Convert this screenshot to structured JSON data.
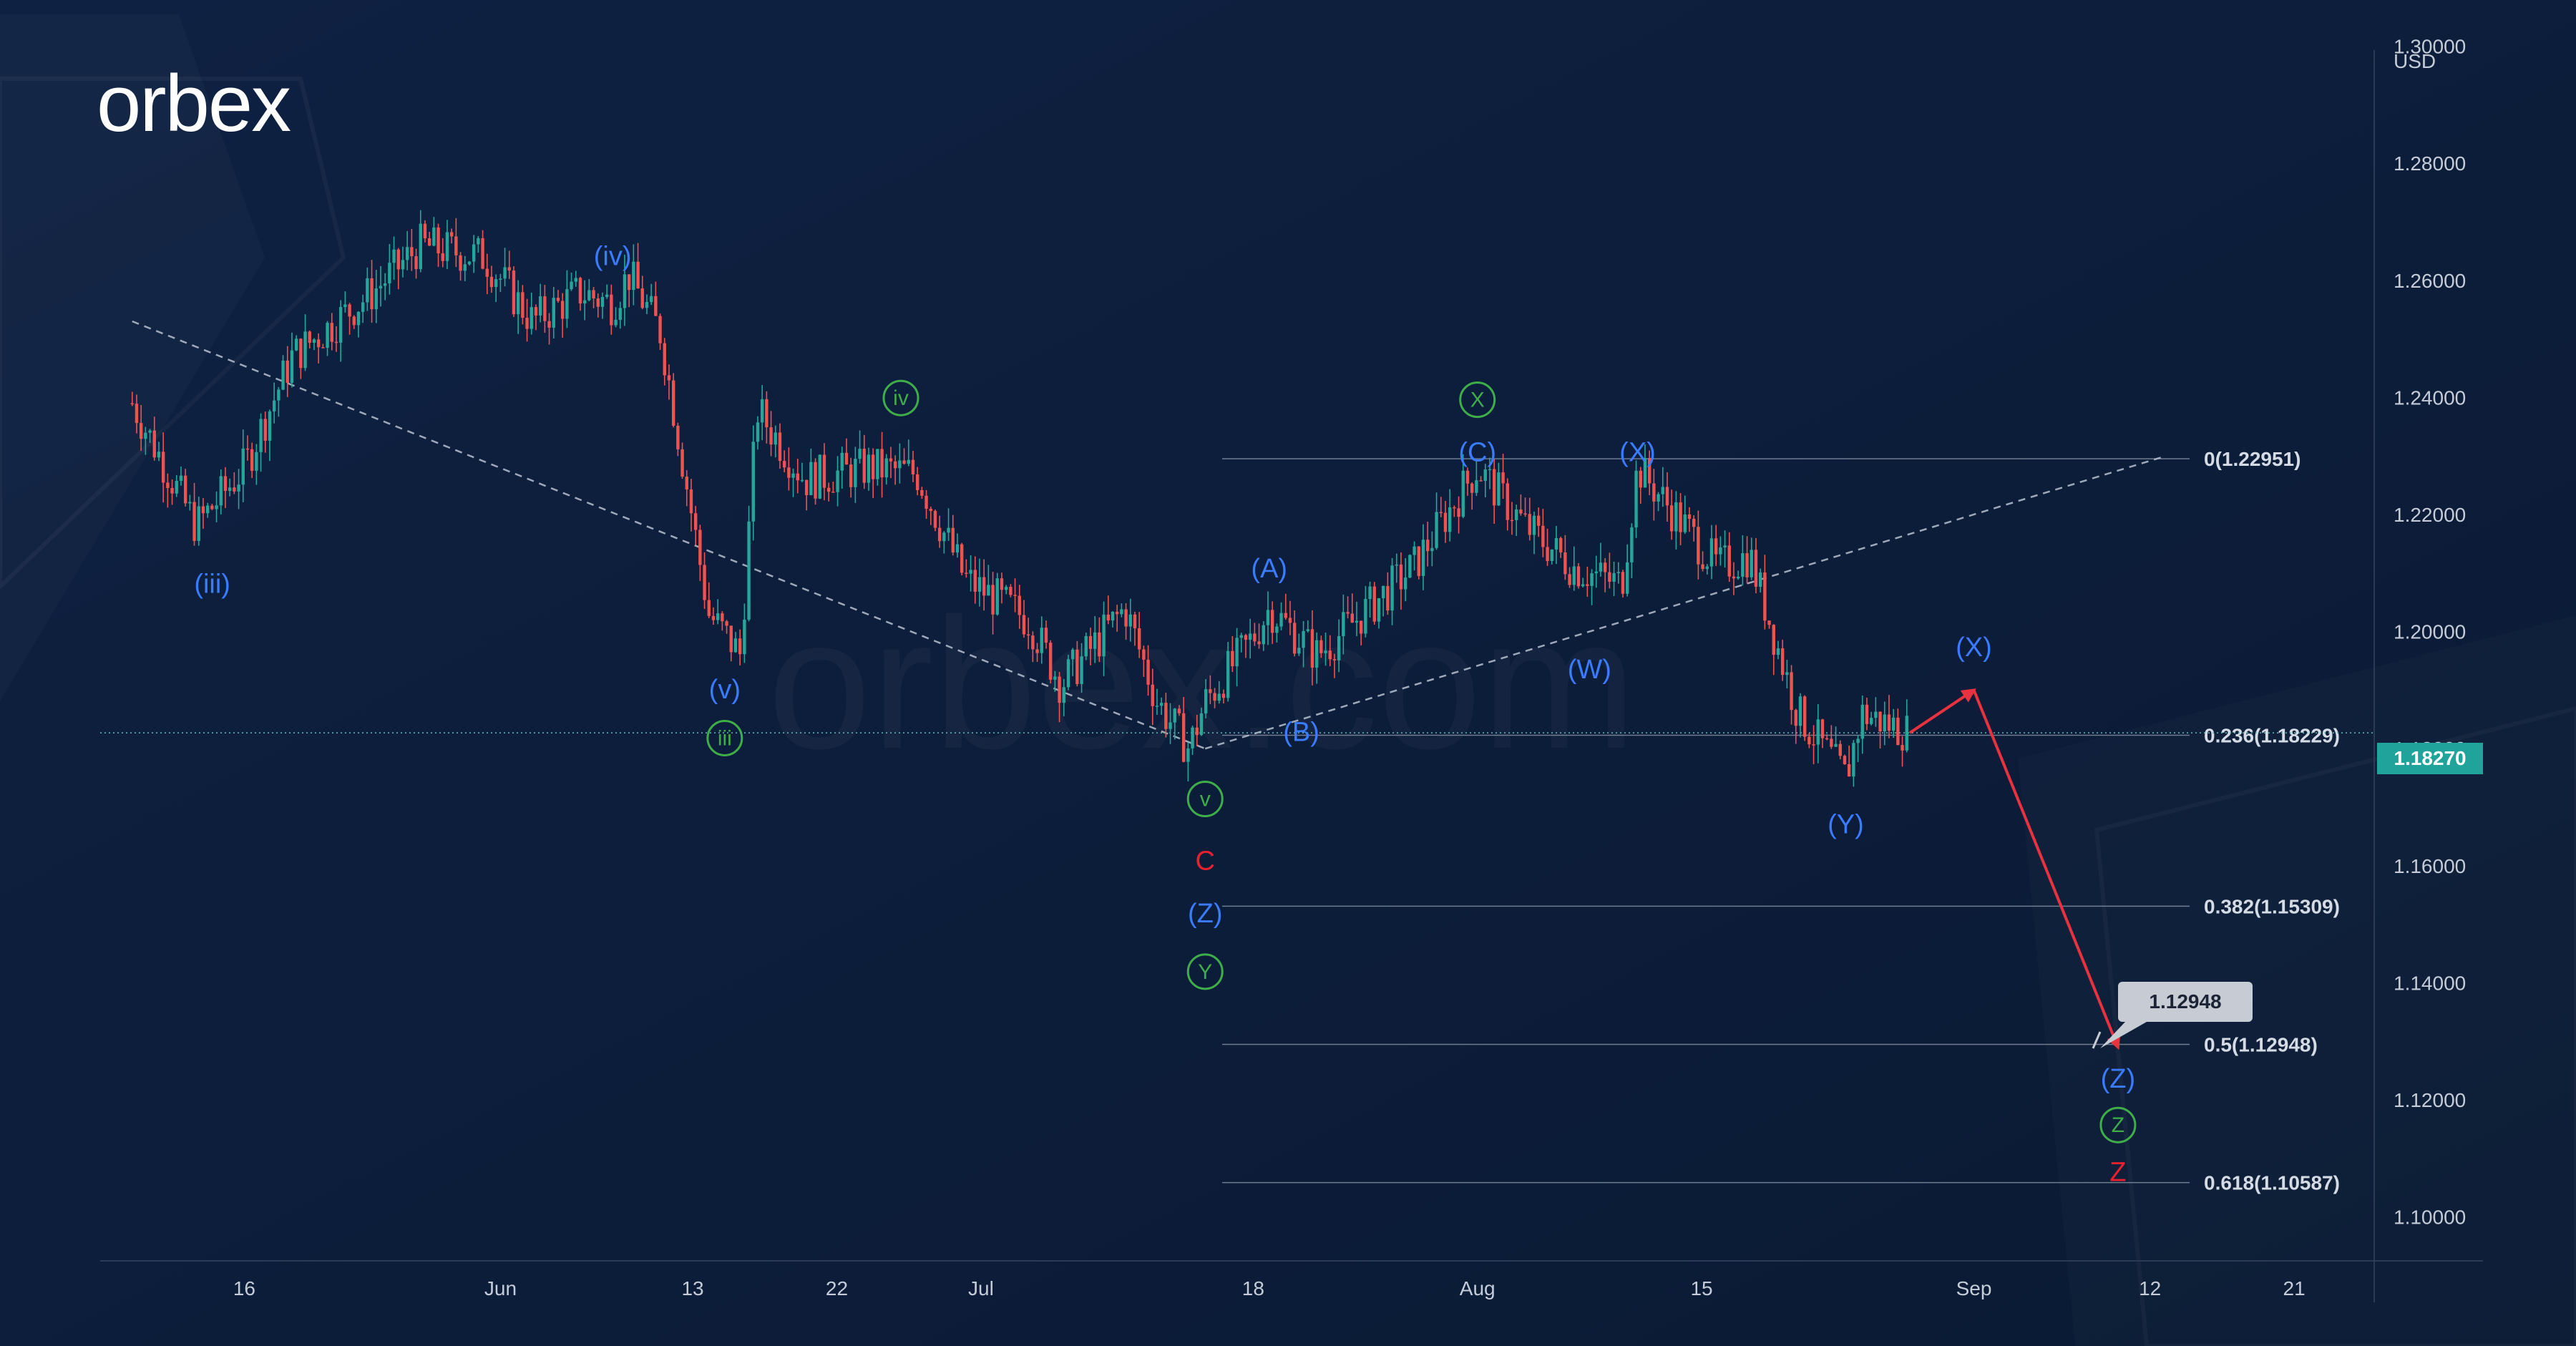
{
  "brand": {
    "logo_text": "orbex",
    "watermark_text": "orbex.com"
  },
  "colors": {
    "background": "#0c1c38",
    "candle_up": "#26a69a",
    "candle_down": "#ef5350",
    "wave_blue": "#3a7bff",
    "wave_green": "#3fae49",
    "wave_red": "#e8202f",
    "arrow": "#e8323f",
    "price_tag_bg": "#1fa39b",
    "fib_line": "#8a95a8",
    "trendline": "#b9c1cf",
    "axis_text": "#c5ccd8"
  },
  "chart_data": {
    "type": "candlestick",
    "currency_label": "USD",
    "x_ticks": [
      "16",
      "Jun",
      "13",
      "22",
      "Jul",
      "18",
      "Aug",
      "15",
      "Sep",
      "12",
      "21"
    ],
    "y_ticks": [
      "1.30000",
      "1.28000",
      "1.26000",
      "1.24000",
      "1.22000",
      "1.20000",
      "1.18000",
      "1.16000",
      "1.14000",
      "1.12000",
      "1.10000"
    ],
    "ylim": [
      1.0925,
      1.303
    ],
    "current_price": "1.18270",
    "price_path": [
      [
        "2022-05-09",
        1.239
      ],
      [
        "2022-05-13",
        1.218
      ],
      [
        "2022-05-16",
        1.228
      ],
      [
        "2022-05-19",
        1.247
      ],
      [
        "2022-05-24",
        1.258
      ],
      [
        "2022-05-27",
        1.266
      ],
      [
        "2022-05-31",
        1.264
      ],
      [
        "2022-06-03",
        1.253
      ],
      [
        "2022-06-06",
        1.258
      ],
      [
        "2022-06-08",
        1.256
      ],
      [
        "2022-06-09",
        1.261
      ],
      [
        "2022-06-11",
        1.251
      ],
      [
        "2022-06-14",
        1.203
      ],
      [
        "2022-06-16",
        1.196
      ],
      [
        "2022-06-17",
        1.238
      ],
      [
        "2022-06-20",
        1.226
      ],
      [
        "2022-06-24",
        1.228
      ],
      [
        "2022-06-27",
        1.227
      ],
      [
        "2022-06-30",
        1.209
      ],
      [
        "2022-07-04",
        1.202
      ],
      [
        "2022-07-06",
        1.191
      ],
      [
        "2022-07-10",
        1.204
      ],
      [
        "2022-07-12",
        1.188
      ],
      [
        "2022-07-14",
        1.18
      ],
      [
        "2022-07-15",
        1.188
      ],
      [
        "2022-07-18",
        1.199
      ],
      [
        "2022-07-19",
        1.204
      ],
      [
        "2022-07-22",
        1.196
      ],
      [
        "2022-07-24",
        1.201
      ],
      [
        "2022-07-28",
        1.211
      ],
      [
        "2022-07-31",
        1.224
      ],
      [
        "2022-08-01",
        1.228
      ],
      [
        "2022-08-04",
        1.218
      ],
      [
        "2022-08-07",
        1.211
      ],
      [
        "2022-08-10",
        1.208
      ],
      [
        "2022-08-11",
        1.228
      ],
      [
        "2022-08-16",
        1.211
      ],
      [
        "2022-08-18",
        1.213
      ],
      [
        "2022-08-21",
        1.186
      ],
      [
        "2022-08-24",
        1.175
      ],
      [
        "2022-08-25",
        1.186
      ],
      [
        "2022-08-28",
        1.1827
      ]
    ],
    "fibonacci_levels": [
      {
        "ratio": "0",
        "value": 1.22951,
        "label": "0(1.22951)"
      },
      {
        "ratio": "0.236",
        "value": 1.18229,
        "label": "0.236(1.18229)"
      },
      {
        "ratio": "0.382",
        "value": 1.15309,
        "label": "0.382(1.15309)"
      },
      {
        "ratio": "0.5",
        "value": 1.12948,
        "label": "0.5(1.12948)"
      },
      {
        "ratio": "0.618",
        "value": 1.10587,
        "label": "0.618(1.10587)"
      }
    ],
    "horizontal_line": 1.1827,
    "target_label": "1.12948",
    "projection_path": [
      [
        "2022-08-28",
        1.1827
      ],
      [
        "2022-09-01",
        1.19
      ],
      [
        "2022-09-10",
        1.129
      ]
    ],
    "trendlines": [
      {
        "from": [
          "2022-05-09",
          1.253
        ],
        "to": [
          "2022-07-15",
          1.18
        ]
      },
      {
        "from": [
          "2022-07-15",
          1.18
        ],
        "to": [
          "2022-09-13",
          1.23
        ]
      }
    ],
    "wave_labels": [
      {
        "text": "(iii)",
        "color": "blue",
        "date": "2022-05-14",
        "value": 1.2082
      },
      {
        "text": "(iv)",
        "color": "blue",
        "date": "2022-06-08",
        "value": 1.2642
      },
      {
        "text": "(v)",
        "color": "blue",
        "date": "2022-06-15",
        "value": 1.1902
      },
      {
        "text": "iii",
        "color": "green",
        "circled": true,
        "date": "2022-06-15",
        "value": 1.1818
      },
      {
        "text": "iv",
        "color": "green",
        "circled": true,
        "date": "2022-06-26",
        "value": 1.2399
      },
      {
        "text": "v",
        "color": "green",
        "circled": true,
        "date": "2022-07-15",
        "value": 1.1714
      },
      {
        "text": "C",
        "color": "red",
        "date": "2022-07-15",
        "value": 1.1609
      },
      {
        "text": "(Z)",
        "color": "blue",
        "date": "2022-07-15",
        "value": 1.1519
      },
      {
        "text": "Y",
        "color": "green",
        "circled": true,
        "date": "2022-07-15",
        "value": 1.1419
      },
      {
        "text": "(A)",
        "color": "blue",
        "date": "2022-07-19",
        "value": 1.2108
      },
      {
        "text": "(B)",
        "color": "blue",
        "date": "2022-07-21",
        "value": 1.1829
      },
      {
        "text": "X",
        "color": "green",
        "circled": true,
        "date": "2022-08-01",
        "value": 1.2396
      },
      {
        "text": "(C)",
        "color": "blue",
        "date": "2022-08-01",
        "value": 1.2307
      },
      {
        "text": "(X)",
        "color": "blue",
        "date": "2022-08-11",
        "value": 1.2307
      },
      {
        "text": "(W)",
        "color": "blue",
        "date": "2022-08-08",
        "value": 1.1936
      },
      {
        "text": "(Y)",
        "color": "blue",
        "date": "2022-08-24",
        "value": 1.1671
      },
      {
        "text": "(X)",
        "color": "blue",
        "date": "2022-09-01",
        "value": 1.1974
      },
      {
        "text": "(Z)",
        "color": "blue",
        "date": "2022-09-10",
        "value": 1.1237
      },
      {
        "text": "Z",
        "color": "green",
        "circled": true,
        "date": "2022-09-10",
        "value": 1.1157
      },
      {
        "text": "Z",
        "color": "red",
        "date": "2022-09-10",
        "value": 1.1077
      }
    ]
  }
}
